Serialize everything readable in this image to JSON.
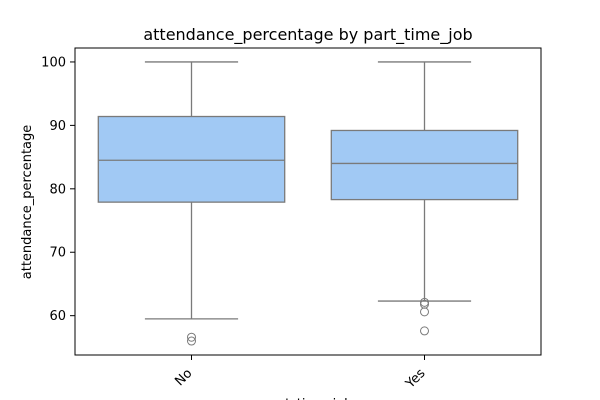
{
  "chart_data": {
    "type": "box",
    "title": "attendance_percentage by part_time_job",
    "xlabel": "part_time_job",
    "ylabel": "attendance_percentage",
    "categories": [
      "No",
      "Yes"
    ],
    "boxes": [
      {
        "category": "No",
        "whisker_low": 59.5,
        "q1": 77.9,
        "median": 84.5,
        "q3": 91.4,
        "whisker_high": 100,
        "outliers": [
          56.0,
          56.6
        ]
      },
      {
        "category": "Yes",
        "whisker_low": 62.3,
        "q1": 78.3,
        "median": 84.0,
        "q3": 89.2,
        "whisker_high": 100,
        "outliers": [
          57.6,
          60.6,
          61.8,
          62.1
        ]
      }
    ],
    "ylim": [
      53.8,
      102.2
    ],
    "yticks": [
      60,
      70,
      80,
      90,
      100
    ],
    "grid": false,
    "colors": {
      "box_fill": "#a1c9f4",
      "line": "#7a7a7a"
    }
  }
}
